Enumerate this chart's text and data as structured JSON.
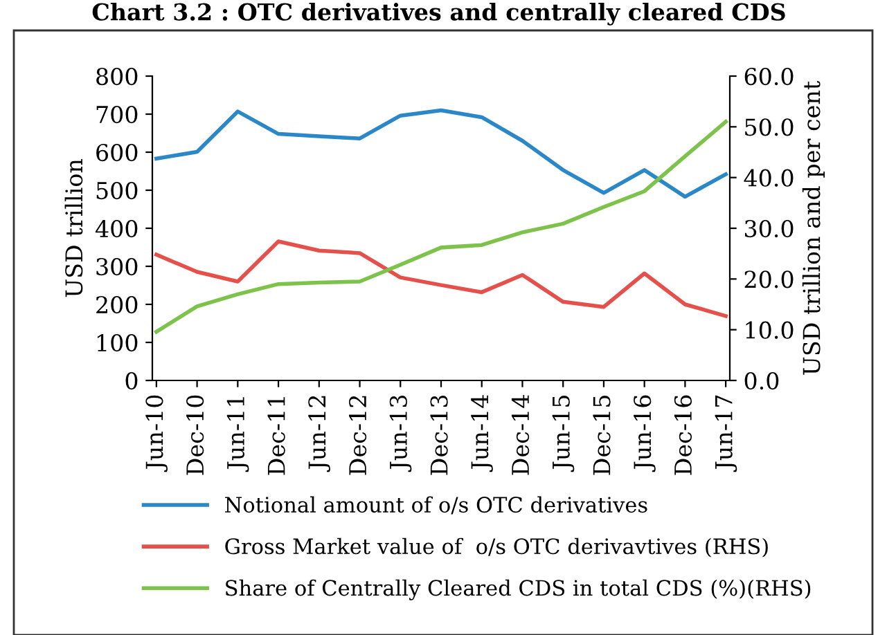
{
  "chart_data": {
    "type": "line",
    "title": "Chart 3.2 : OTC derivatives and centrally cleared CDS",
    "ylabel": "USD trillion",
    "y2label": "USD trillion and per cent",
    "categories": [
      "Jun-10",
      "Dec-10",
      "Jun-11",
      "Dec-11",
      "Jun-12",
      "Dec-12",
      "Jun-13",
      "Dec-13",
      "Jun-14",
      "Dec-14",
      "Jun-15",
      "Dec-15",
      "Jun-16",
      "Dec-16",
      "Jun-17"
    ],
    "series": [
      {
        "name": "Notional amount of o/s OTC derivatives",
        "color": "#2a87c8",
        "values": [
          583,
          601,
          707,
          648,
          642,
          636,
          696,
          710,
          692,
          630,
          553,
          493,
          553,
          483,
          542
        ]
      },
      {
        "name": "Gross Market value of  o/s OTC derivavtives (RHS)",
        "color": "#e5504b",
        "axis": "y2",
        "values": [
          24.8,
          21.4,
          19.5,
          27.4,
          25.6,
          25.1,
          20.3,
          18.8,
          17.4,
          20.8,
          15.5,
          14.5,
          21.1,
          15.0,
          12.7
        ]
      },
      {
        "name": "Share of Centrally Cleared CDS in total CDS (%)(RHS)",
        "color": "#7dc24a",
        "axis": "y2",
        "values": [
          9.6,
          14.6,
          17.0,
          19.0,
          19.3,
          19.5,
          22.8,
          26.2,
          26.7,
          29.2,
          30.9,
          34.2,
          37.3,
          44.2,
          51.0
        ]
      }
    ],
    "ylim": [
      0,
      800
    ],
    "yticks": [
      0,
      100,
      200,
      300,
      400,
      500,
      600,
      700,
      800
    ],
    "y2lim": [
      0,
      60
    ],
    "y2ticks": [
      {
        "value": 0,
        "label": "0.0"
      },
      {
        "value": 10,
        "label": "10.0"
      },
      {
        "value": 20,
        "label": "20.0"
      },
      {
        "value": 30,
        "label": "30.0"
      },
      {
        "value": 40,
        "label": "40.0"
      },
      {
        "value": 50,
        "label": "50.0"
      },
      {
        "value": 60,
        "label": "60.0"
      }
    ],
    "grid": false,
    "legend": "bottom",
    "marker": "none",
    "line_style": "solid"
  }
}
